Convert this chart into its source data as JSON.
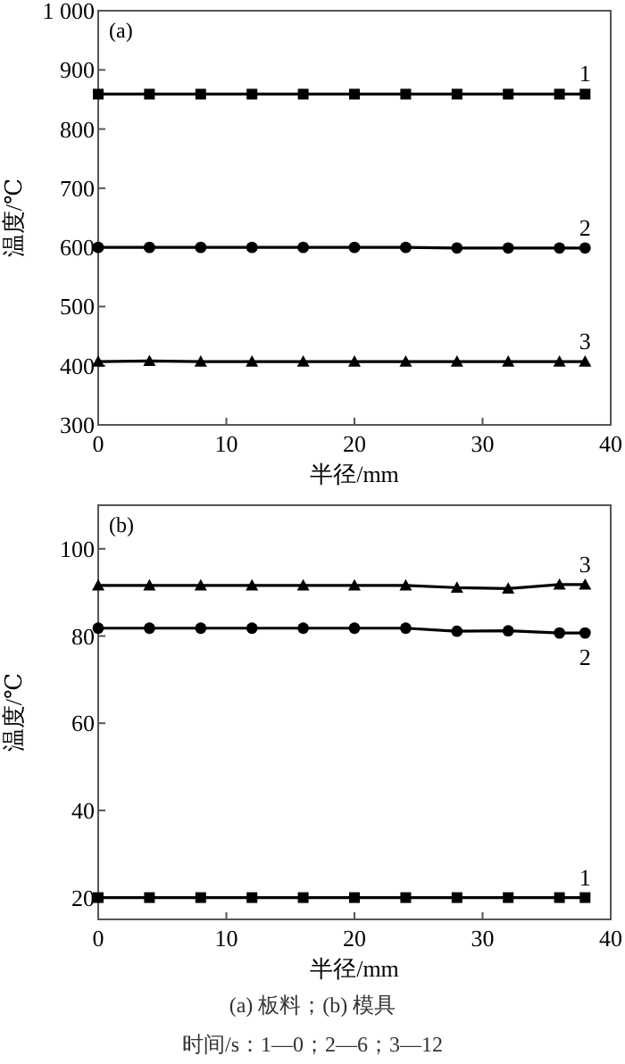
{
  "chart_data": [
    {
      "type": "line",
      "title": "(a)",
      "xlabel": "半径/mm",
      "ylabel": "温度/℃",
      "x": [
        0,
        4,
        8,
        12,
        16,
        20,
        24,
        28,
        32,
        36,
        38
      ],
      "xlim": [
        0,
        40
      ],
      "xticks": [
        0,
        10,
        20,
        30,
        40
      ],
      "ylim": [
        300,
        1000
      ],
      "yticks": [
        300,
        400,
        500,
        600,
        700,
        800,
        900,
        {
          "value": 1000,
          "label": "1 000"
        }
      ],
      "grid": false,
      "line_style": "solid",
      "series": [
        {
          "name": "1",
          "color": "#000000",
          "marker": "square",
          "values": [
            859,
            859,
            859,
            859,
            859,
            859,
            859,
            859,
            859,
            859,
            859
          ]
        },
        {
          "name": "2",
          "color": "#000000",
          "marker": "circle",
          "values": [
            600,
            600,
            600,
            600,
            600,
            600,
            600,
            599,
            599,
            599,
            599
          ]
        },
        {
          "name": "3",
          "color": "#000000",
          "marker": "triangle",
          "values": [
            407,
            408,
            407,
            407,
            407,
            407,
            407,
            407,
            407,
            407,
            407
          ]
        }
      ]
    },
    {
      "type": "line",
      "title": "(b)",
      "xlabel": "半径/mm",
      "ylabel": "温度/℃",
      "x": [
        0,
        4,
        8,
        12,
        16,
        20,
        24,
        28,
        32,
        36,
        38
      ],
      "xlim": [
        0,
        40
      ],
      "xticks": [
        0,
        10,
        20,
        30,
        40
      ],
      "ylim": [
        15,
        110
      ],
      "yticks": [
        20,
        40,
        60,
        80,
        100
      ],
      "grid": false,
      "line_style": "solid",
      "annotations": [
        "(a) 板料；(b) 模具",
        "时间/s：1—0；2—6；3—12"
      ],
      "series": [
        {
          "name": "1",
          "color": "#000000",
          "marker": "square",
          "values": [
            20,
            20,
            20,
            20,
            20,
            20,
            20,
            20,
            20,
            20,
            20
          ]
        },
        {
          "name": "2",
          "color": "#000000",
          "marker": "circle",
          "values": [
            81.8,
            81.8,
            81.8,
            81.8,
            81.8,
            81.8,
            81.8,
            81.1,
            81.2,
            80.7,
            80.7
          ]
        },
        {
          "name": "3",
          "color": "#000000",
          "marker": "triangle",
          "values": [
            91.6,
            91.6,
            91.6,
            91.6,
            91.6,
            91.6,
            91.6,
            91.1,
            90.9,
            91.8,
            91.8
          ]
        }
      ]
    }
  ]
}
